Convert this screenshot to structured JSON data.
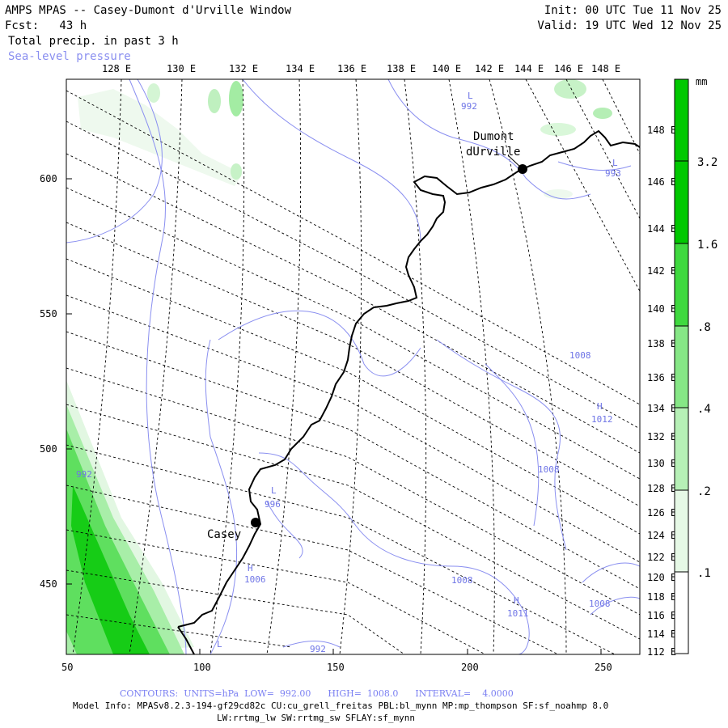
{
  "header": {
    "title": "AMPS MPAS -- Casey-Dumont d'Urville Window",
    "forecast": "Fcst:   43 h",
    "field": "Total precip. in past 3 h",
    "overlay": "Sea-level pressure",
    "init": "Init: 00 UTC Tue 11 Nov 25",
    "valid": "Valid: 19 UTC Wed 12 Nov 25"
  },
  "top_lon_labels": [
    "128 E",
    "130 E",
    "132 E",
    "134 E",
    "136 E",
    "138 E",
    "140 E",
    "142 E",
    "144 E",
    "146 E",
    "148 E"
  ],
  "right_lon_labels": [
    "148 E",
    "146 E",
    "144 E",
    "142 E",
    "140 E",
    "138 E",
    "136 E",
    "134 E",
    "132 E",
    "130 E",
    "128 E",
    "126 E",
    "124 E",
    "122 E",
    "120 E",
    "118 E",
    "116 E",
    "114 E",
    "112 E"
  ],
  "left_y_labels": [
    "600",
    "550",
    "500",
    "450"
  ],
  "bottom_x_labels": [
    "50",
    "100",
    "150",
    "200",
    "250"
  ],
  "colorbar": {
    "unit": "mm",
    "levels": [
      ".1",
      ".2",
      ".4",
      ".8",
      "1.6",
      "3.2"
    ],
    "colors": [
      "#ffffff",
      "#e6f9e6",
      "#b6f0b6",
      "#86e786",
      "#3fd93f",
      "#00c800"
    ]
  },
  "map_labels": {
    "dumont": [
      "Dumont",
      "dUrville"
    ],
    "casey": "Casey",
    "pressure": [
      {
        "sym": "L",
        "val": "992"
      },
      {
        "sym": "L",
        "val": "993"
      },
      {
        "sym": "",
        "val": "1008"
      },
      {
        "sym": "H",
        "val": "1012"
      },
      {
        "sym": "",
        "val": "1008"
      },
      {
        "sym": "L",
        "val": "996"
      },
      {
        "sym": "H",
        "val": "1006"
      },
      {
        "sym": "",
        "val": "1008"
      },
      {
        "sym": "H",
        "val": "1011"
      },
      {
        "sym": "",
        "val": "1008"
      },
      {
        "sym": "",
        "val": "992"
      },
      {
        "sym": "L",
        "val": "992"
      }
    ]
  },
  "footer": {
    "contours": "CONTOURS:  UNITS=hPa  LOW=  992.00      HIGH=  1008.0      INTERVAL=    4.0000",
    "model_info": "Model Info: MPASv8.2.3-194-gf29cd82c CU:cu_grell_freitas PBL:bl_mynn MP:mp_thompson SF:sf_noahmp 8.0",
    "model_info2": "LW:rrtmg_lw SW:rrtmg_sw SFLAY:sf_mynn"
  }
}
